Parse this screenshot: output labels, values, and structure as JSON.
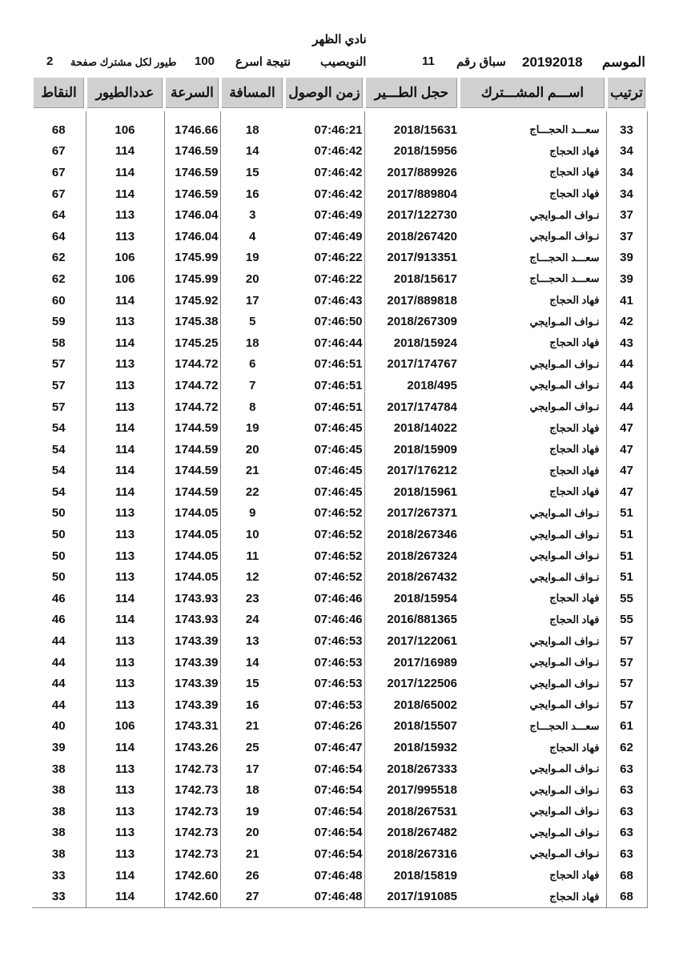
{
  "header": {
    "club": "نادي الظهر",
    "season_label": "الموسم",
    "season_value": "20192018",
    "race_label": "سباق رقم",
    "race_value": "11",
    "location": "النويصيب",
    "result_label": "نتيجة اسرع",
    "result_value": "100",
    "birds_per_label": "طيور لكل مشترك صفحة",
    "page_value": "2"
  },
  "table": {
    "columns": [
      "ترتيب",
      "اســـم المشـــترك",
      "حجل الطـــير",
      "زمن الوصول",
      "المسافة",
      "السرعة",
      "عددالطيور",
      "النقاط"
    ],
    "rows": [
      [
        "33",
        "سعـــد الحجـــاج",
        "2018/15631",
        "07:46:21",
        "18",
        "1746.66",
        "106",
        "68"
      ],
      [
        "34",
        "فهاد الحجاج",
        "2018/15956",
        "07:46:42",
        "14",
        "1746.59",
        "114",
        "67"
      ],
      [
        "34",
        "فهاد الحجاج",
        "2017/889926",
        "07:46:42",
        "15",
        "1746.59",
        "114",
        "67"
      ],
      [
        "34",
        "فهاد الحجاج",
        "2017/889804",
        "07:46:42",
        "16",
        "1746.59",
        "114",
        "67"
      ],
      [
        "37",
        "نـواف  المـوايجي",
        "2017/122730",
        "07:46:49",
        "3",
        "1746.04",
        "113",
        "64"
      ],
      [
        "37",
        "نـواف  المـوايجي",
        "2018/267420",
        "07:46:49",
        "4",
        "1746.04",
        "113",
        "64"
      ],
      [
        "39",
        "سعـــد الحجـــاج",
        "2017/913351",
        "07:46:22",
        "19",
        "1745.99",
        "106",
        "62"
      ],
      [
        "39",
        "سعـــد الحجـــاج",
        "2018/15617",
        "07:46:22",
        "20",
        "1745.99",
        "106",
        "62"
      ],
      [
        "41",
        "فهاد الحجاج",
        "2017/889818",
        "07:46:43",
        "17",
        "1745.92",
        "114",
        "60"
      ],
      [
        "42",
        "نـواف  المـوايجي",
        "2018/267309",
        "07:46:50",
        "5",
        "1745.38",
        "113",
        "59"
      ],
      [
        "43",
        "فهاد الحجاج",
        "2018/15924",
        "07:46:44",
        "18",
        "1745.25",
        "114",
        "58"
      ],
      [
        "44",
        "نـواف  المـوايجي",
        "2017/174767",
        "07:46:51",
        "6",
        "1744.72",
        "113",
        "57"
      ],
      [
        "44",
        "نـواف  المـوايجي",
        "2018/495",
        "07:46:51",
        "7",
        "1744.72",
        "113",
        "57"
      ],
      [
        "44",
        "نـواف  المـوايجي",
        "2017/174784",
        "07:46:51",
        "8",
        "1744.72",
        "113",
        "57"
      ],
      [
        "47",
        "فهاد الحجاج",
        "2018/14022",
        "07:46:45",
        "19",
        "1744.59",
        "114",
        "54"
      ],
      [
        "47",
        "فهاد الحجاج",
        "2018/15909",
        "07:46:45",
        "20",
        "1744.59",
        "114",
        "54"
      ],
      [
        "47",
        "فهاد الحجاج",
        "2017/176212",
        "07:46:45",
        "21",
        "1744.59",
        "114",
        "54"
      ],
      [
        "47",
        "فهاد الحجاج",
        "2018/15961",
        "07:46:45",
        "22",
        "1744.59",
        "114",
        "54"
      ],
      [
        "51",
        "نـواف  المـوايجي",
        "2017/267371",
        "07:46:52",
        "9",
        "1744.05",
        "113",
        "50"
      ],
      [
        "51",
        "نـواف  المـوايجي",
        "2018/267346",
        "07:46:52",
        "10",
        "1744.05",
        "113",
        "50"
      ],
      [
        "51",
        "نـواف  المـوايجي",
        "2018/267324",
        "07:46:52",
        "11",
        "1744.05",
        "113",
        "50"
      ],
      [
        "51",
        "نـواف  المـوايجي",
        "2018/267432",
        "07:46:52",
        "12",
        "1744.05",
        "113",
        "50"
      ],
      [
        "55",
        "فهاد الحجاج",
        "2018/15954",
        "07:46:46",
        "23",
        "1743.93",
        "114",
        "46"
      ],
      [
        "55",
        "فهاد الحجاج",
        "2016/881365",
        "07:46:46",
        "24",
        "1743.93",
        "114",
        "46"
      ],
      [
        "57",
        "نـواف  المـوايجي",
        "2017/122061",
        "07:46:53",
        "13",
        "1743.39",
        "113",
        "44"
      ],
      [
        "57",
        "نـواف  المـوايجي",
        "2017/16989",
        "07:46:53",
        "14",
        "1743.39",
        "113",
        "44"
      ],
      [
        "57",
        "نـواف  المـوايجي",
        "2017/122506",
        "07:46:53",
        "15",
        "1743.39",
        "113",
        "44"
      ],
      [
        "57",
        "نـواف  المـوايجي",
        "2018/65002",
        "07:46:53",
        "16",
        "1743.39",
        "113",
        "44"
      ],
      [
        "61",
        "سعـــد الحجـــاج",
        "2018/15507",
        "07:46:26",
        "21",
        "1743.31",
        "106",
        "40"
      ],
      [
        "62",
        "فهاد الحجاج",
        "2018/15932",
        "07:46:47",
        "25",
        "1743.26",
        "114",
        "39"
      ],
      [
        "63",
        "نـواف  المـوايجي",
        "2018/267333",
        "07:46:54",
        "17",
        "1742.73",
        "113",
        "38"
      ],
      [
        "63",
        "نـواف  المـوايجي",
        "2017/995518",
        "07:46:54",
        "18",
        "1742.73",
        "113",
        "38"
      ],
      [
        "63",
        "نـواف  المـوايجي",
        "2018/267531",
        "07:46:54",
        "19",
        "1742.73",
        "113",
        "38"
      ],
      [
        "63",
        "نـواف  المـوايجي",
        "2018/267482",
        "07:46:54",
        "20",
        "1742.73",
        "113",
        "38"
      ],
      [
        "63",
        "نـواف  المـوايجي",
        "2018/267316",
        "07:46:54",
        "21",
        "1742.73",
        "113",
        "38"
      ],
      [
        "68",
        "فهاد الحجاج",
        "2018/15819",
        "07:46:48",
        "26",
        "1742.60",
        "114",
        "33"
      ],
      [
        "68",
        "فهاد الحجاج",
        "2017/191085",
        "07:46:48",
        "27",
        "1742.60",
        "114",
        "33"
      ]
    ]
  }
}
